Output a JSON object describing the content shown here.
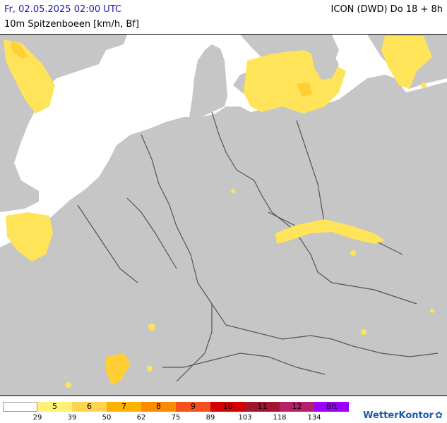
{
  "header": {
    "valid_time": "Fr, 02.05.2025 02:00 UTC",
    "parameter": "10m Spitzenboeen [km/h, Bf]",
    "model": "ICON (DWD) Do 18 + 8h"
  },
  "legend": {
    "cells": [
      {
        "label": "",
        "color": "#ffffff"
      },
      {
        "label": "5",
        "color": "#fff176"
      },
      {
        "label": "6",
        "color": "#ffd54f"
      },
      {
        "label": "7",
        "color": "#ffb300"
      },
      {
        "label": "8",
        "color": "#fb8c00"
      },
      {
        "label": "9",
        "color": "#f4511e"
      },
      {
        "label": "10",
        "color": "#d50000"
      },
      {
        "label": "11",
        "color": "#a0162f"
      },
      {
        "label": "12",
        "color": "#b5206b"
      },
      {
        "label": "Bft",
        "color": "#9b00ff"
      }
    ],
    "ticks": [
      "29",
      "39",
      "50",
      "62",
      "75",
      "89",
      "103",
      "118",
      "134"
    ]
  },
  "colors": {
    "land": "#c6c6c6",
    "sea": "#ffffff",
    "border": "#555555",
    "gust_light": "#ffe45a",
    "gust_med": "#ffcf33"
  },
  "branding": {
    "logo": "WetterKontor",
    "icon": "wind-turbine-icon"
  }
}
